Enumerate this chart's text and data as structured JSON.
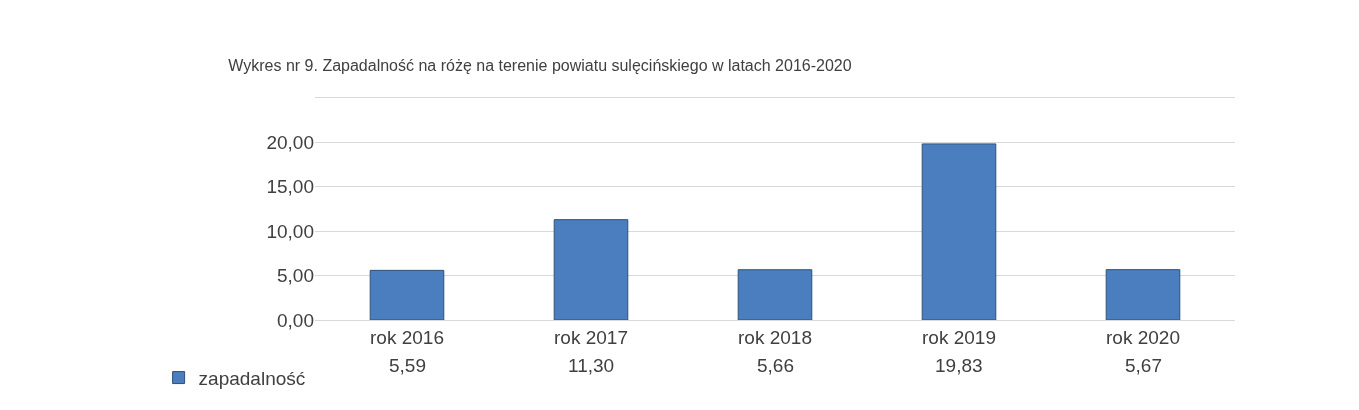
{
  "chart_data": {
    "type": "bar",
    "title": "Wykres nr 9. Zapadalność na różę na terenie powiatu sulęcińskiego w latach 2016-2020",
    "categories": [
      "rok 2016",
      "rok 2017",
      "rok 2018",
      "rok 2019",
      "rok 2020"
    ],
    "series": [
      {
        "name": "zapadalność",
        "color": "#4a7ebf",
        "values": [
          5.59,
          11.3,
          5.66,
          19.83,
          5.67
        ],
        "value_labels": [
          "5,59",
          "11,30",
          "5,66",
          "19,83",
          "5,67"
        ]
      }
    ],
    "ylim": [
      0,
      25
    ],
    "yticks": [
      {
        "value": 0,
        "label": "0,00"
      },
      {
        "value": 5,
        "label": "5,00"
      },
      {
        "value": 10,
        "label": "10,00"
      },
      {
        "value": 15,
        "label": "15,00"
      },
      {
        "value": 20,
        "label": "20,00"
      },
      {
        "value": 25,
        "label": null
      }
    ],
    "grid": "y",
    "legend": "bottom left"
  }
}
